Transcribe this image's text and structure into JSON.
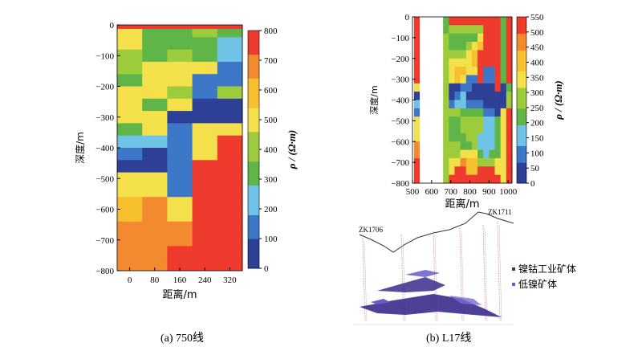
{
  "chart_data": [
    {
      "type": "heatmap",
      "id": "line-750",
      "caption": "(a) 750线",
      "xlabel": "距离/m",
      "ylabel": "深度/m",
      "x_ticks": [
        "0",
        "80",
        "160",
        "240",
        "320"
      ],
      "y_ticks": [
        "0",
        "−100",
        "−200",
        "−300",
        "−400",
        "−500",
        "−600",
        "−700",
        "−800"
      ],
      "colorbar_label": "ρ / (Ω·m)",
      "colorbar_ticks": [
        "0",
        "100",
        "200",
        "300",
        "400",
        "500",
        "600",
        "700",
        "800"
      ],
      "colorscale_range": [
        0,
        800
      ],
      "xlim": [
        -40,
        360
      ],
      "ylim": [
        -800,
        0
      ]
    },
    {
      "type": "heatmap",
      "id": "line-L17",
      "caption": "(b) L17线",
      "xlabel": "距离/m",
      "ylabel": "深度/m",
      "x_ticks": [
        "500",
        "600",
        "700",
        "800",
        "900",
        "1000"
      ],
      "y_ticks": [
        "0",
        "−100",
        "−200",
        "−300",
        "−400",
        "−500",
        "−600",
        "−700",
        "−800"
      ],
      "colorbar_label": "ρ / (Ω·m)",
      "colorbar_ticks": [
        "0",
        "50",
        "100",
        "150",
        "200",
        "250",
        "300",
        "350",
        "400",
        "450",
        "500",
        "550"
      ],
      "colorscale_range": [
        0,
        550
      ],
      "xlim": [
        500,
        1020
      ],
      "ylim": [
        -800,
        0
      ]
    },
    {
      "type": "diagram",
      "id": "L17-section",
      "borehole_labels": [
        "ZK1706",
        "ZK1711"
      ],
      "legend": [
        {
          "label": "镍钴工业矿体",
          "color": "#3b2a8c"
        },
        {
          "label": "低镍矿体",
          "color": "#6a5acd"
        }
      ]
    }
  ],
  "colors": {
    "palette": [
      "#2e3f96",
      "#3d78c8",
      "#6fc3e6",
      "#5fb548",
      "#9ccc3c",
      "#f4e04a",
      "#f6c02e",
      "#f48a30",
      "#ee3b2e"
    ]
  }
}
